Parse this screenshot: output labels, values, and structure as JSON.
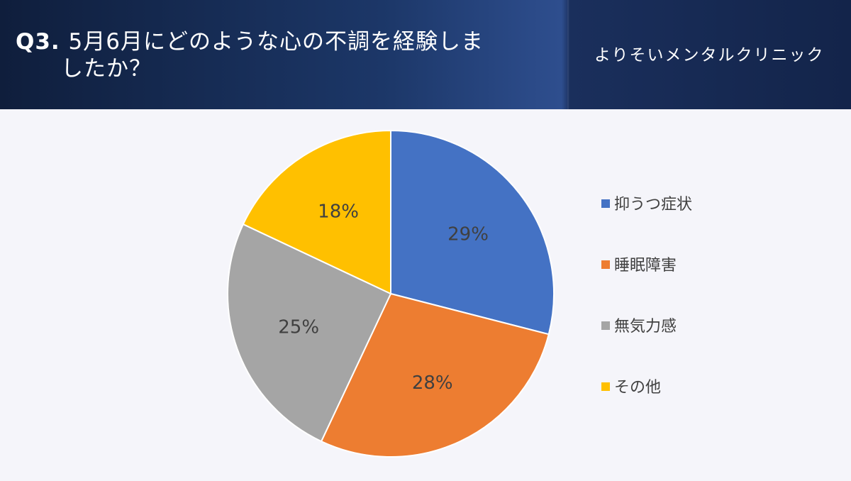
{
  "header": {
    "title_q": "Q3.",
    "title_line1": "5月6月にどのような心の不調を経験しま",
    "title_line2": "したか？",
    "brand": "よりそいメンタルクリニック"
  },
  "colors": {
    "header_bg": "#1c3768",
    "slice_1": "#4472c4",
    "slice_2": "#ed7d31",
    "slice_3": "#a5a5a5",
    "slice_4": "#ffc000"
  },
  "chart_data": {
    "type": "pie",
    "title": "Q3. 5月6月にどのような心の不調を経験しましたか？",
    "categories": [
      "抑うつ症状",
      "睡眠障害",
      "無気力感",
      "その他"
    ],
    "values": [
      29,
      28,
      25,
      18
    ],
    "labels": [
      "29%",
      "28%",
      "25%",
      "18%"
    ],
    "start_angle": "12 o'clock",
    "direction": "clockwise",
    "legend_position": "right"
  }
}
